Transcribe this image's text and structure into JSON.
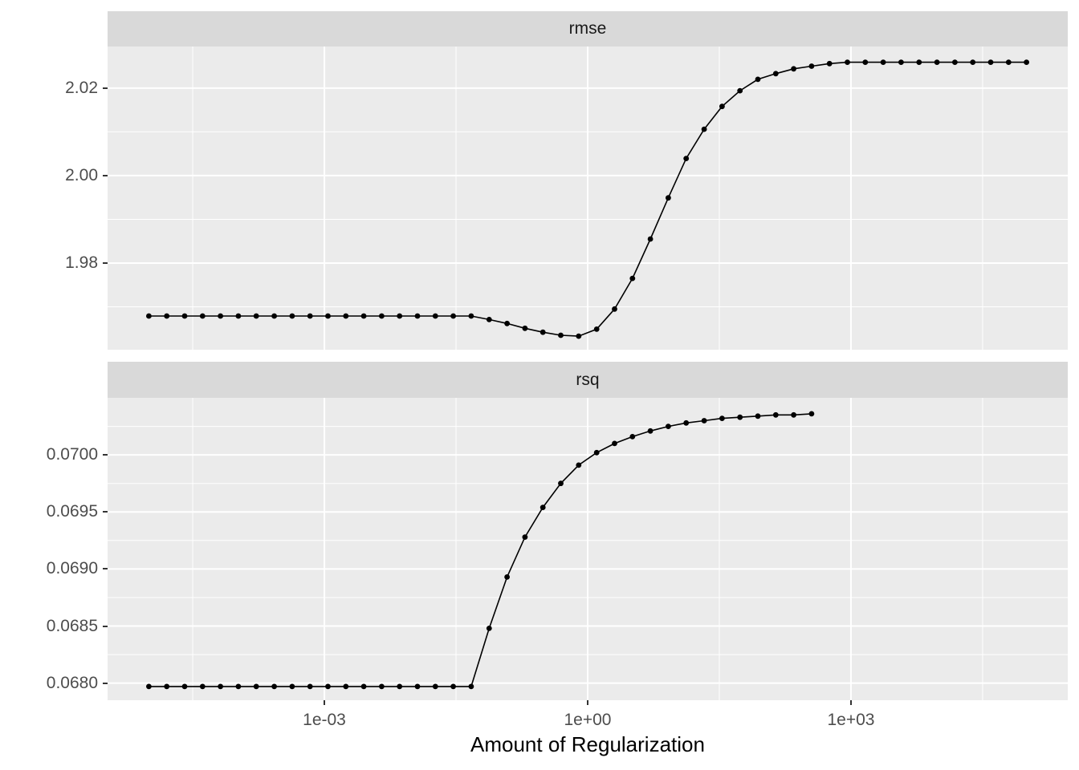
{
  "x_axis": {
    "title": "Amount of Regularization",
    "scale": "log10",
    "tick_labels": [
      "1e-03",
      "1e+00",
      "1e+03"
    ],
    "tick_log10": [
      -3,
      0,
      3
    ],
    "minor_log10": [
      -4.5,
      -1.5,
      1.5,
      4.5
    ],
    "xlim_log10": [
      -5.47,
      5.47
    ]
  },
  "facets": [
    {
      "strip_label": "rmse",
      "y_tick_labels": [
        "2.02",
        "2.00",
        "1.98"
      ],
      "y_tick_values": [
        2.02,
        2.0,
        1.98
      ],
      "y_minor_values": [
        2.01,
        1.99,
        1.97
      ],
      "ylim": [
        1.9602,
        2.0295
      ]
    },
    {
      "strip_label": "rsq",
      "y_tick_labels": [
        "0.0700",
        "0.0695",
        "0.0690",
        "0.0685",
        "0.0680"
      ],
      "y_tick_values": [
        0.07,
        0.0695,
        0.069,
        0.0685,
        0.068
      ],
      "y_minor_values": [
        0.07025,
        0.06975,
        0.06925,
        0.06875,
        0.06825
      ],
      "ylim": [
        0.06785,
        0.0705
      ]
    }
  ],
  "chart_data": [
    {
      "type": "line",
      "facet": "rmse",
      "marker": "point",
      "color": "#000000",
      "x_scale": "log10",
      "x_log10": [
        -5.0,
        -4.796,
        -4.592,
        -4.388,
        -4.184,
        -3.98,
        -3.776,
        -3.571,
        -3.367,
        -3.163,
        -2.959,
        -2.755,
        -2.551,
        -2.347,
        -2.143,
        -1.939,
        -1.735,
        -1.531,
        -1.327,
        -1.122,
        -0.918,
        -0.714,
        -0.51,
        -0.306,
        -0.102,
        0.102,
        0.306,
        0.51,
        0.714,
        0.918,
        1.122,
        1.327,
        1.531,
        1.735,
        1.939,
        2.143,
        2.347,
        2.551,
        2.755,
        2.959,
        3.163,
        3.367,
        3.571,
        3.776,
        3.98,
        4.184,
        4.388,
        4.592,
        4.796,
        5.0
      ],
      "values": [
        1.9679,
        1.9679,
        1.9679,
        1.9679,
        1.9679,
        1.9679,
        1.9679,
        1.9679,
        1.9679,
        1.9679,
        1.9679,
        1.9679,
        1.9679,
        1.9679,
        1.9679,
        1.9679,
        1.9679,
        1.9679,
        1.9679,
        1.9671,
        1.9662,
        1.9651,
        1.9642,
        1.9635,
        1.9633,
        1.9649,
        1.9695,
        1.9765,
        1.9855,
        1.9949,
        2.0039,
        2.0106,
        2.0158,
        2.0194,
        2.022,
        2.0233,
        2.0244,
        2.025,
        2.0256,
        2.0259,
        2.0259,
        2.0259,
        2.0259,
        2.0259,
        2.0259,
        2.0259,
        2.0259,
        2.0259,
        2.0259,
        2.0259
      ]
    },
    {
      "type": "line",
      "facet": "rsq",
      "marker": "point",
      "color": "#000000",
      "x_scale": "log10",
      "x_log10": [
        -5.0,
        -4.796,
        -4.592,
        -4.388,
        -4.184,
        -3.98,
        -3.776,
        -3.571,
        -3.367,
        -3.163,
        -2.959,
        -2.755,
        -2.551,
        -2.347,
        -2.143,
        -1.939,
        -1.735,
        -1.531,
        -1.327,
        -1.122,
        -0.918,
        -0.714,
        -0.51,
        -0.306,
        -0.102,
        0.102,
        0.306,
        0.51,
        0.714,
        0.918,
        1.122,
        1.327,
        1.531,
        1.735,
        1.939,
        2.143,
        2.347,
        2.551
      ],
      "values": [
        0.06797,
        0.06797,
        0.06797,
        0.06797,
        0.06797,
        0.06797,
        0.06797,
        0.06797,
        0.06797,
        0.06797,
        0.06797,
        0.06797,
        0.06797,
        0.06797,
        0.06797,
        0.06797,
        0.06797,
        0.06797,
        0.06797,
        0.06848,
        0.06893,
        0.06928,
        0.06954,
        0.06975,
        0.06991,
        0.07002,
        0.0701,
        0.07016,
        0.07021,
        0.07025,
        0.07028,
        0.0703,
        0.07032,
        0.07033,
        0.07034,
        0.07035,
        0.07035,
        0.07036
      ]
    }
  ],
  "colors": {
    "panel_bg": "#EBEBEB",
    "strip_bg": "#D9D9D9",
    "grid": "#FFFFFF",
    "axis_text": "#4D4D4D",
    "tick_mark": "#333333",
    "series": "#000000"
  }
}
